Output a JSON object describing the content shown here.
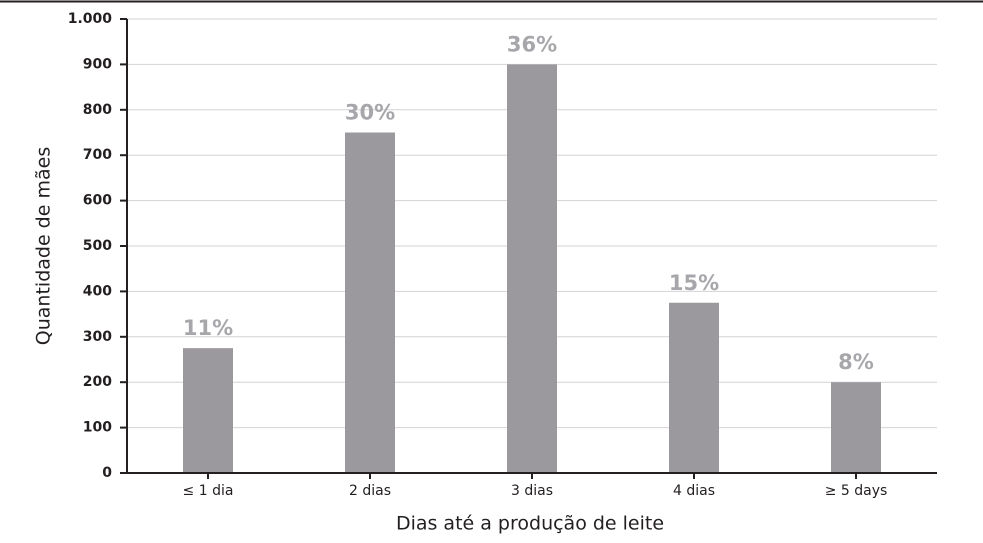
{
  "chart_data": {
    "type": "bar",
    "categories": [
      "≤ 1 dia",
      "2 dias",
      "3 dias",
      "4 dias",
      "≥ 5 days"
    ],
    "values": [
      275,
      750,
      900,
      375,
      200
    ],
    "annotations": [
      "11%",
      "30%",
      "36%",
      "15%",
      "8%"
    ],
    "color": "#9b999e",
    "x_label": "Dias até a produção de leite",
    "y_label": "Quantidade de mães",
    "ylim": [
      0,
      1000
    ],
    "yticks": [
      0,
      100,
      200,
      300,
      400,
      500,
      600,
      700,
      800,
      900,
      {
        "value": 1000,
        "label": "1.000"
      }
    ],
    "grid": true
  }
}
